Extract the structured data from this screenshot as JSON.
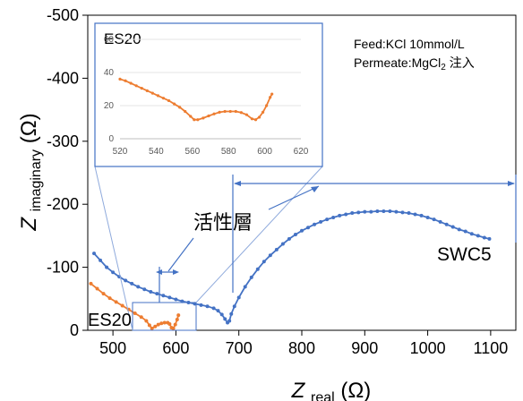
{
  "chart_data": [
    {
      "type": "scatter",
      "title": "",
      "xlabel_main": "Z",
      "xlabel_sub": "real",
      "xlabel_unit": "(Ω)",
      "ylabel_main": "Z",
      "ylabel_sub": "imaginary",
      "ylabel_unit": "(Ω)",
      "xlim": [
        460,
        1140
      ],
      "ylim": [
        0,
        -500
      ],
      "x_ticks": [
        500,
        600,
        700,
        800,
        900,
        1000,
        1100
      ],
      "y_ticks": [
        0,
        -100,
        -200,
        -300,
        -400,
        -500
      ],
      "y_tick_labels": [
        "0",
        "-100",
        "-200",
        "-300",
        "-400",
        "-500"
      ],
      "series": [
        {
          "name": "SWC5",
          "color": "#4472C4",
          "points": [
            [
              470,
              -122
            ],
            [
              480,
              -111
            ],
            [
              490,
              -100
            ],
            [
              500,
              -92
            ],
            [
              510,
              -85
            ],
            [
              520,
              -79
            ],
            [
              530,
              -74
            ],
            [
              540,
              -69
            ],
            [
              550,
              -65
            ],
            [
              560,
              -61
            ],
            [
              570,
              -58
            ],
            [
              580,
              -55
            ],
            [
              590,
              -52
            ],
            [
              600,
              -49
            ],
            [
              610,
              -46
            ],
            [
              620,
              -44
            ],
            [
              630,
              -42
            ],
            [
              640,
              -40
            ],
            [
              650,
              -38
            ],
            [
              660,
              -35
            ],
            [
              667,
              -31
            ],
            [
              673,
              -25
            ],
            [
              678,
              -18
            ],
            [
              682,
              -12
            ],
            [
              685,
              -15
            ],
            [
              688,
              -26
            ],
            [
              693,
              -38
            ],
            [
              700,
              -52
            ],
            [
              710,
              -69
            ],
            [
              720,
              -84
            ],
            [
              730,
              -97
            ],
            [
              740,
              -109
            ],
            [
              750,
              -119
            ],
            [
              760,
              -128
            ],
            [
              770,
              -137
            ],
            [
              780,
              -145
            ],
            [
              790,
              -152
            ],
            [
              800,
              -158
            ],
            [
              810,
              -163
            ],
            [
              820,
              -168
            ],
            [
              830,
              -172
            ],
            [
              840,
              -176
            ],
            [
              850,
              -179
            ],
            [
              860,
              -182
            ],
            [
              870,
              -184
            ],
            [
              880,
              -186
            ],
            [
              890,
              -187
            ],
            [
              900,
              -188
            ],
            [
              910,
              -188
            ],
            [
              920,
              -189
            ],
            [
              930,
              -189
            ],
            [
              940,
              -189
            ],
            [
              950,
              -188
            ],
            [
              960,
              -187
            ],
            [
              970,
              -186
            ],
            [
              980,
              -184
            ],
            [
              990,
              -182
            ],
            [
              1000,
              -179
            ],
            [
              1010,
              -176
            ],
            [
              1020,
              -172
            ],
            [
              1030,
              -168
            ],
            [
              1040,
              -164
            ],
            [
              1050,
              -160
            ],
            [
              1060,
              -157
            ],
            [
              1070,
              -153
            ],
            [
              1080,
              -150
            ],
            [
              1090,
              -147
            ],
            [
              1098,
              -145
            ]
          ]
        },
        {
          "name": "ES20",
          "color": "#ED7D31",
          "points": [
            [
              465,
              -74
            ],
            [
              475,
              -66
            ],
            [
              485,
              -58
            ],
            [
              495,
              -51
            ],
            [
              505,
              -45
            ],
            [
              515,
              -39
            ],
            [
              525,
              -33
            ],
            [
              535,
              -27
            ],
            [
              545,
              -21
            ],
            [
              553,
              -15
            ],
            [
              558,
              -8
            ],
            [
              562,
              -3
            ],
            [
              567,
              -6
            ],
            [
              572,
              -9
            ],
            [
              577,
              -11
            ],
            [
              582,
              -12
            ],
            [
              587,
              -12
            ],
            [
              590,
              -10
            ],
            [
              593,
              -4
            ],
            [
              596,
              -3
            ],
            [
              599,
              -9
            ],
            [
              602,
              -17
            ],
            [
              604,
              -24
            ]
          ]
        }
      ],
      "annotations": {
        "swc5_label": "SWC5",
        "es20_label": "ES20",
        "active_layer": "活性層"
      },
      "legend_text": {
        "feed": "Feed:KCl 10mmol/L",
        "permeate_prefix": "Permeate:MgCl",
        "permeate_sub": "2",
        "permeate_suffix": " 注入"
      },
      "grid": false
    },
    {
      "type": "scatter",
      "title": "ES20",
      "xlim": [
        520,
        620
      ],
      "ylim": [
        0,
        60
      ],
      "x_ticks": [
        520,
        540,
        560,
        580,
        600,
        620
      ],
      "y_ticks": [
        0,
        20,
        40,
        60
      ],
      "series": [
        {
          "name": "ES20",
          "color": "#ED7D31",
          "points": [
            [
              520,
              36
            ],
            [
              523,
              35
            ],
            [
              526,
              33.5
            ],
            [
              529,
              32
            ],
            [
              532,
              30.5
            ],
            [
              535,
              29
            ],
            [
              538,
              27.5
            ],
            [
              541,
              26
            ],
            [
              544,
              24.5
            ],
            [
              547,
              23
            ],
            [
              550,
              21
            ],
            [
              553,
              19
            ],
            [
              556,
              16.5
            ],
            [
              559,
              13.5
            ],
            [
              561,
              11.5
            ],
            [
              563,
              11.5
            ],
            [
              566,
              12.5
            ],
            [
              569,
              13.8
            ],
            [
              572,
              15
            ],
            [
              575,
              16
            ],
            [
              578,
              16.5
            ],
            [
              581,
              16.5
            ],
            [
              584,
              16.5
            ],
            [
              587,
              15.8
            ],
            [
              590,
              14.5
            ],
            [
              593,
              12
            ],
            [
              595,
              11.5
            ],
            [
              597,
              13
            ],
            [
              599,
              16
            ],
            [
              601,
              20
            ],
            [
              603,
              25
            ],
            [
              604,
              27
            ]
          ]
        }
      ],
      "grid": true
    }
  ]
}
